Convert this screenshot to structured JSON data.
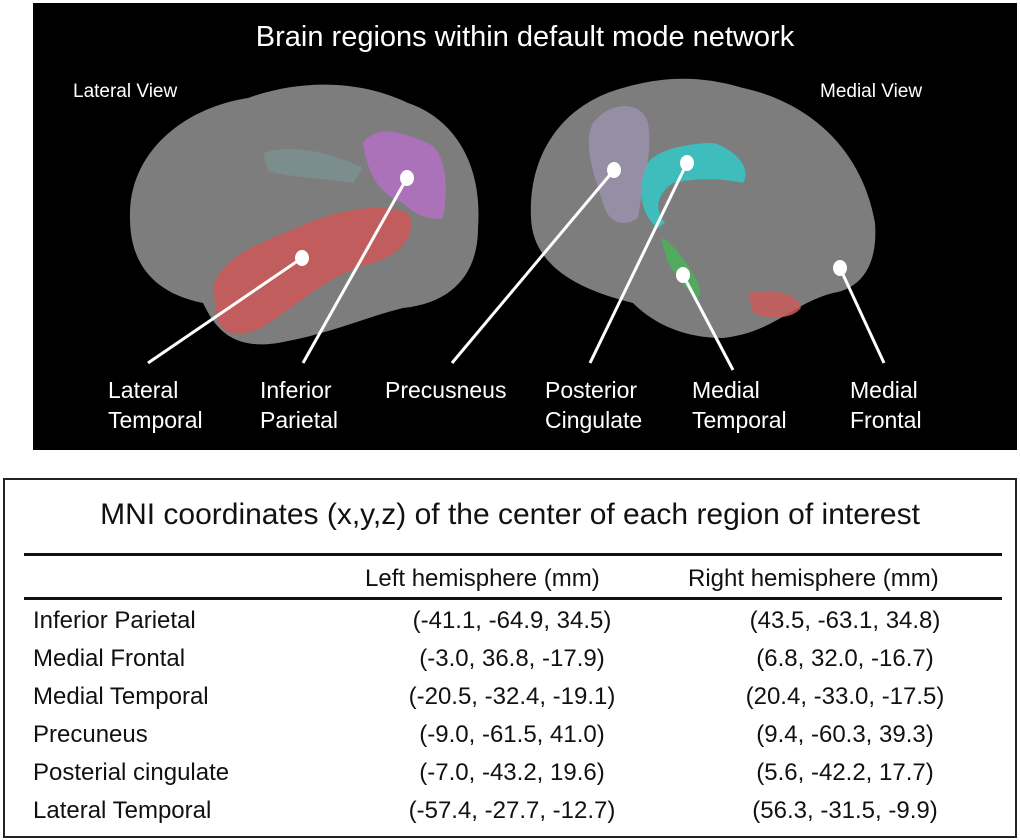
{
  "figure": {
    "title": "Brain regions within default mode network",
    "views": [
      "Lateral View",
      "Medial View"
    ],
    "region_labels": [
      {
        "line1": "Lateral",
        "line2": "Temporal",
        "color": "#d06060"
      },
      {
        "line1": "Inferior",
        "line2": "Parietal",
        "color": "#b874c8"
      },
      {
        "line1": "Precusneus",
        "line2": "",
        "color": "#a898b8"
      },
      {
        "line1": "Posterior",
        "line2": "Cingulate",
        "color": "#40c0c0"
      },
      {
        "line1": "Medial",
        "line2": "Temporal",
        "color": "#50b060"
      },
      {
        "line1": "Medial",
        "line2": "Frontal",
        "color": "#8a8a8a"
      }
    ],
    "brain_color": "#7a7a7a",
    "background": "#000000"
  },
  "table": {
    "title": "MNI coordinates (x,y,z) of the center of each region of interest",
    "headers": [
      "",
      "Left hemisphere (mm)",
      "Right hemisphere (mm)"
    ],
    "rows": [
      [
        "Inferior Parietal",
        "(-41.1, -64.9, 34.5)",
        "(43.5, -63.1, 34.8)"
      ],
      [
        "Medial Frontal",
        "(-3.0, 36.8, -17.9)",
        "(6.8, 32.0, -16.7)"
      ],
      [
        "Medial Temporal",
        "(-20.5, -32.4, -19.1)",
        "(20.4, -33.0, -17.5)"
      ],
      [
        "Precuneus",
        "(-9.0, -61.5, 41.0)",
        "(9.4, -60.3, 39.3)"
      ],
      [
        "Posterial cingulate",
        "(-7.0, -43.2, 19.6)",
        "(5.6, -42.2, 17.7)"
      ],
      [
        "Lateral Temporal",
        "(-57.4, -27.7, -12.7)",
        "(56.3, -31.5, -9.9)"
      ]
    ]
  }
}
